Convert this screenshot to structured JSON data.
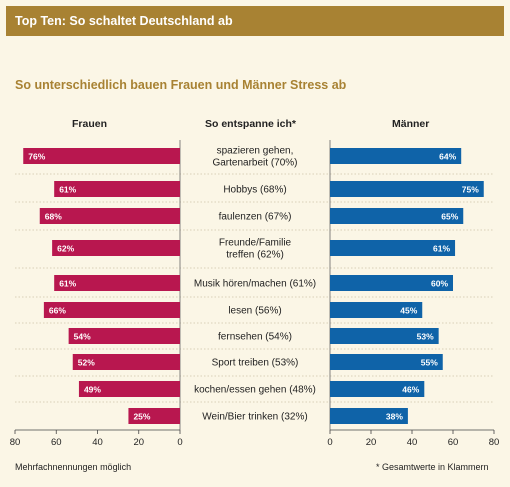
{
  "banner_title": "Top Ten: So schaltet Deutschland ab",
  "subtitle": "So unterschiedlich bauen Frauen und Männer Stress ab",
  "footnote_left": "Mehrfachnennungen möglich",
  "footnote_right": "* Gesamtwerte in Klammern",
  "colors": {
    "banner": "#a88233",
    "women": "#b8174f",
    "men": "#0f63a8",
    "background": "#fbf6e6",
    "gridline": "#d9d0b8"
  },
  "chart_data": {
    "type": "bar",
    "orientation": "horizontal-butterfly",
    "column_headers": {
      "left": "Frauen",
      "middle": "So entspanne ich*",
      "right": "Männer"
    },
    "categories": [
      "spazieren gehen,\nGartenarbeit (70%)",
      "Hobbys (68%)",
      "faulenzen (67%)",
      "Freunde/Familie\ntreffen (62%)",
      "Musik hören/machen (61%)",
      "lesen (56%)",
      "fernsehen (54%)",
      "Sport treiben (53%)",
      "kochen/essen gehen (48%)",
      "Wein/Bier trinken (32%)"
    ],
    "series": [
      {
        "name": "Frauen",
        "values": [
          76,
          61,
          68,
          62,
          61,
          66,
          54,
          52,
          49,
          25
        ],
        "labels": [
          "76%",
          "61%",
          "68%",
          "62%",
          "61%",
          "66%",
          "54%",
          "52%",
          "49%",
          "25%"
        ]
      },
      {
        "name": "Männer",
        "values": [
          64,
          75,
          65,
          61,
          60,
          45,
          53,
          55,
          46,
          38
        ],
        "labels": [
          "64%",
          "75%",
          "65%",
          "61%",
          "60%",
          "45%",
          "53%",
          "55%",
          "46%",
          "38%"
        ]
      }
    ],
    "left_axis": {
      "min": 0,
      "max": 80,
      "ticks": [
        "80",
        "60",
        "40",
        "20",
        "0"
      ],
      "reversed": true
    },
    "right_axis": {
      "min": 0,
      "max": 80,
      "ticks": [
        "0",
        "20",
        "40",
        "60",
        "80"
      ]
    },
    "grid": true
  }
}
